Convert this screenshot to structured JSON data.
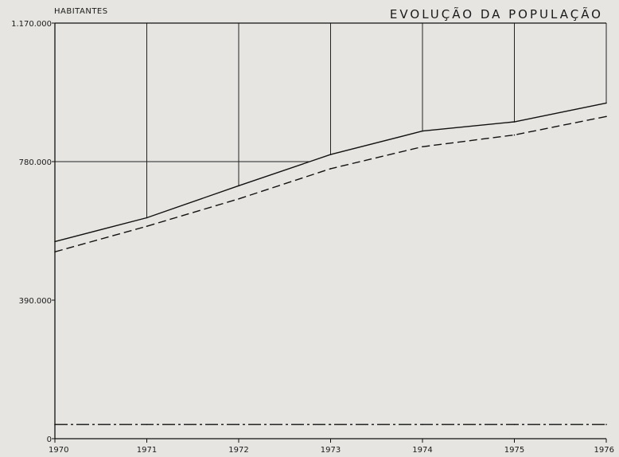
{
  "chart_data": {
    "type": "line",
    "title": "EVOLUÇÃO DA POPULAÇÃO",
    "ylabel": "HABITANTES",
    "xlabel": "",
    "x": [
      "1970",
      "1971",
      "1972",
      "1973",
      "1974",
      "1975",
      "1976"
    ],
    "y_ticks": [
      "0",
      "390.000",
      "780.000",
      "1.170.000"
    ],
    "y_tick_values": [
      0,
      390000,
      780000,
      1170000
    ],
    "ylim": [
      0,
      1170000
    ],
    "series": [
      {
        "style": "solid",
        "values": [
          555000,
          622000,
          712000,
          800000,
          866000,
          892000,
          945000
        ]
      },
      {
        "style": "dashed",
        "values": [
          526000,
          598000,
          675000,
          760000,
          822000,
          855000,
          907000
        ]
      },
      {
        "style": "dashdot",
        "values": [
          40000,
          40000,
          40000,
          40000,
          40000,
          40000,
          40000
        ]
      }
    ],
    "grid": true,
    "legend": "none"
  }
}
